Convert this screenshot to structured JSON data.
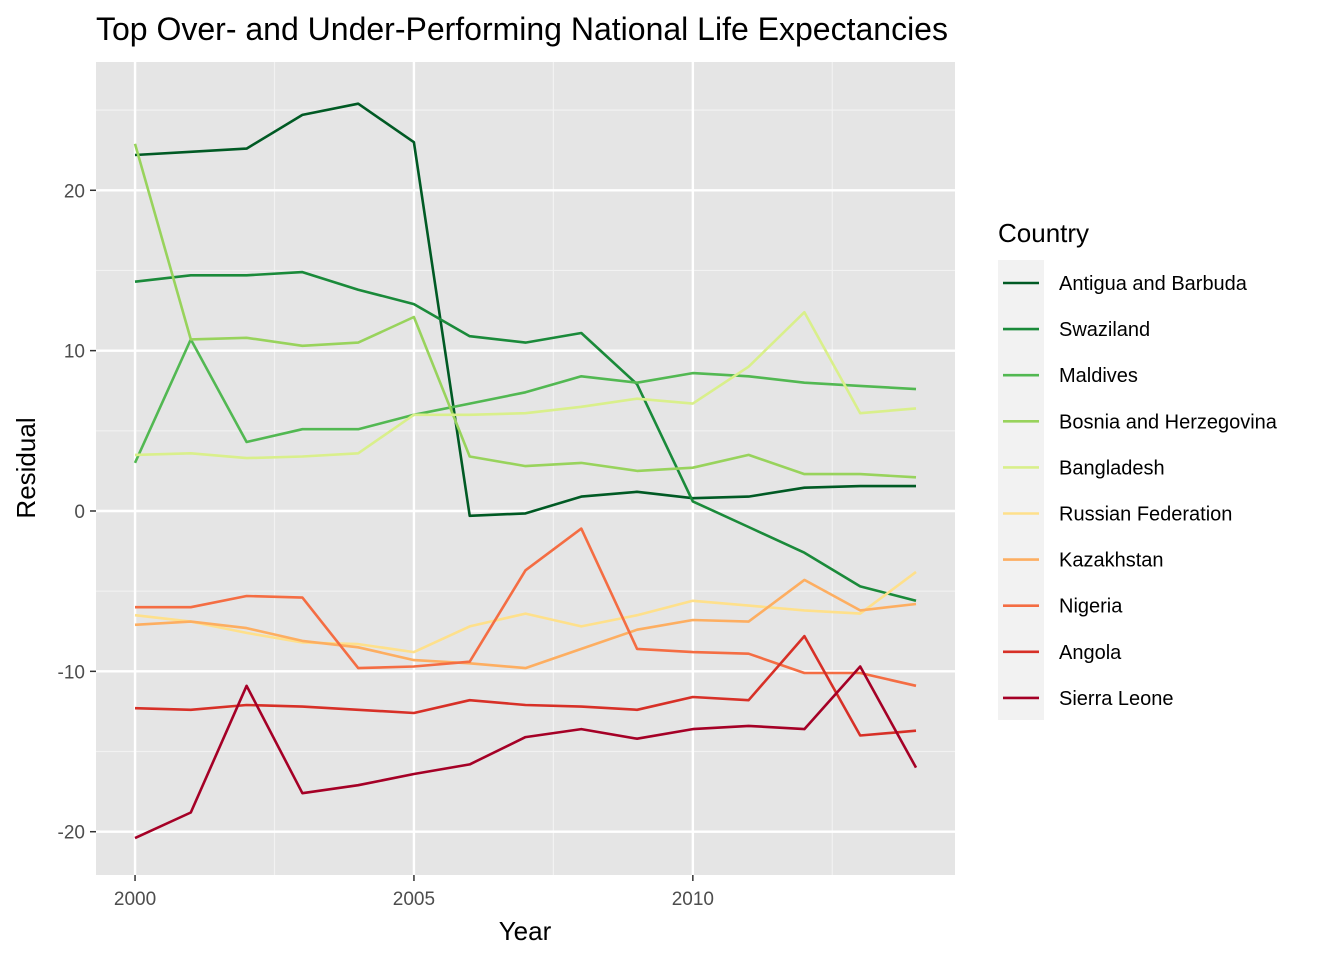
{
  "chart_data": {
    "type": "line",
    "title": "Top Over- and Under-Performing National Life Expectancies",
    "xlabel": "Year",
    "ylabel": "Residual",
    "xlim": [
      1999.3,
      2014.7
    ],
    "ylim": [
      -22.7,
      28
    ],
    "x_ticks": [
      2000,
      2005,
      2010
    ],
    "y_ticks": [
      -20,
      -10,
      0,
      10,
      20
    ],
    "grid": true,
    "legend": {
      "title": "Country",
      "position": "right"
    },
    "x": [
      2000,
      2001,
      2002,
      2003,
      2004,
      2005,
      2006,
      2007,
      2008,
      2009,
      2010,
      2011,
      2012,
      2013,
      2014
    ],
    "series": [
      {
        "name": "Antigua and Barbuda",
        "color": "#005a24",
        "values": [
          22.2,
          22.4,
          22.6,
          24.7,
          25.4,
          23.0,
          -0.3,
          -0.15,
          0.9,
          1.2,
          0.8,
          0.9,
          1.45,
          1.55,
          1.55
        ]
      },
      {
        "name": "Swaziland",
        "color": "#1a8a3a",
        "values": [
          14.3,
          14.7,
          14.7,
          14.9,
          13.8,
          12.9,
          10.9,
          10.5,
          11.1,
          7.9,
          0.6,
          -1.0,
          -2.6,
          -4.7,
          -5.6
        ]
      },
      {
        "name": "Maldives",
        "color": "#52b852",
        "values": [
          3.0,
          10.7,
          4.3,
          5.1,
          5.1,
          6.0,
          6.7,
          7.4,
          8.4,
          8.0,
          8.6,
          8.4,
          8.0,
          7.8,
          7.6
        ]
      },
      {
        "name": "Bosnia and Herzegovina",
        "color": "#98d35c",
        "values": [
          22.9,
          10.7,
          10.8,
          10.3,
          10.5,
          12.1,
          3.4,
          2.8,
          3.0,
          2.5,
          2.7,
          3.5,
          2.3,
          2.3,
          2.1
        ]
      },
      {
        "name": "Bangladesh",
        "color": "#d9ef8b",
        "values": [
          3.5,
          3.6,
          3.3,
          3.4,
          3.6,
          6.0,
          6.0,
          6.1,
          6.5,
          7.0,
          6.7,
          9.0,
          12.4,
          6.1,
          6.4
        ]
      },
      {
        "name": "Russian Federation",
        "color": "#fee08b",
        "values": [
          -6.5,
          -6.9,
          -7.6,
          -8.2,
          -8.3,
          -8.8,
          -7.2,
          -6.4,
          -7.2,
          -6.5,
          -5.6,
          -5.9,
          -6.2,
          -6.4,
          -3.8
        ]
      },
      {
        "name": "Kazakhstan",
        "color": "#fdae61",
        "values": [
          -7.1,
          -6.9,
          -7.3,
          -8.1,
          -8.5,
          -9.3,
          -9.5,
          -9.8,
          -8.6,
          -7.4,
          -6.8,
          -6.9,
          -4.3,
          -6.2,
          -5.8
        ]
      },
      {
        "name": "Nigeria",
        "color": "#f46d43",
        "values": [
          -6.0,
          -6.0,
          -5.3,
          -5.4,
          -9.8,
          -9.7,
          -9.4,
          -3.7,
          -1.1,
          -8.6,
          -8.8,
          -8.9,
          -10.1,
          -10.1,
          -10.9
        ]
      },
      {
        "name": "Angola",
        "color": "#d73027",
        "values": [
          -12.3,
          -12.4,
          -12.1,
          -12.2,
          -12.4,
          -12.6,
          -11.8,
          -12.1,
          -12.2,
          -12.4,
          -11.6,
          -11.8,
          -7.8,
          -14.0,
          -13.7
        ]
      },
      {
        "name": "Sierra Leone",
        "color": "#a50026",
        "values": [
          -20.4,
          -18.8,
          -10.9,
          -17.6,
          -17.1,
          -16.4,
          -15.8,
          -14.1,
          -13.6,
          -14.2,
          -13.6,
          -13.4,
          -13.6,
          -9.7,
          -16.0
        ]
      }
    ]
  }
}
